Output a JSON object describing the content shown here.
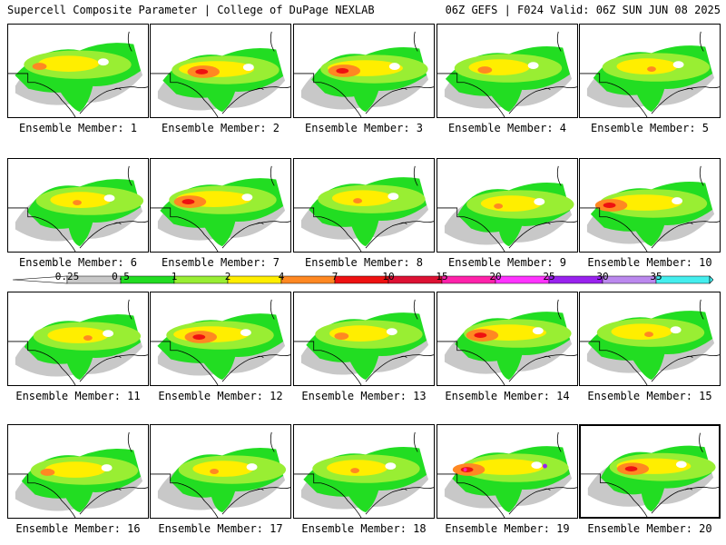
{
  "header": {
    "left_title": "Supercell Composite Parameter | College of DuPage NEXLAB",
    "right_title": "06Z GEFS | F024 Valid: 06Z SUN JUN 08 2025"
  },
  "colors": {
    "gray": "#c8c8c8",
    "green": "#22dd22",
    "light_green": "#99ee33",
    "yellow": "#ffee00",
    "orange": "#ff8822",
    "red": "#ee1111",
    "crimson": "#dd1133",
    "magenta": "#ff22aa",
    "pink_magenta": "#ff33ff",
    "light_magenta": "#ee77ff",
    "purple": "#9922ee",
    "lavender": "#bb88ee",
    "cyan": "#44eeee"
  },
  "colorbar": {
    "labels": [
      "0.25",
      "0.5",
      "1",
      "2",
      "4",
      "7",
      "10",
      "15",
      "20",
      "25",
      "30",
      "35"
    ]
  },
  "members": [
    {
      "label": "Ensemble Member: 1"
    },
    {
      "label": "Ensemble Member: 2"
    },
    {
      "label": "Ensemble Member: 3"
    },
    {
      "label": "Ensemble Member: 4"
    },
    {
      "label": "Ensemble Member: 5"
    },
    {
      "label": "Ensemble Member: 6"
    },
    {
      "label": "Ensemble Member: 7"
    },
    {
      "label": "Ensemble Member: 8"
    },
    {
      "label": "Ensemble Member: 9"
    },
    {
      "label": "Ensemble Member: 10"
    },
    {
      "label": "Ensemble Member: 11"
    },
    {
      "label": "Ensemble Member: 12"
    },
    {
      "label": "Ensemble Member: 13"
    },
    {
      "label": "Ensemble Member: 14"
    },
    {
      "label": "Ensemble Member: 15"
    },
    {
      "label": "Ensemble Member: 16"
    },
    {
      "label": "Ensemble Member: 17"
    },
    {
      "label": "Ensemble Member: 18"
    },
    {
      "label": "Ensemble Member: 19"
    },
    {
      "label": "Ensemble Member: 20"
    }
  ]
}
